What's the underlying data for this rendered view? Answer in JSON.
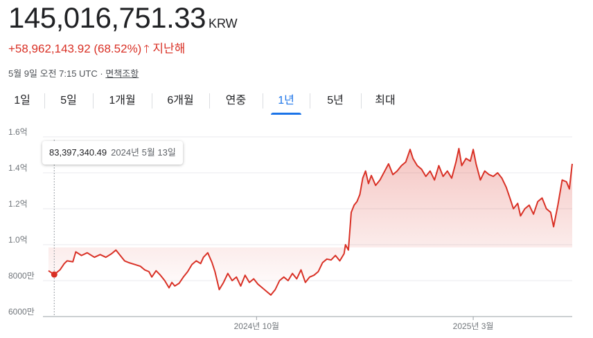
{
  "quote": {
    "price": "145,016,751.33",
    "currency": "KRW",
    "change": "+58,962,143.92 (68.52%)",
    "period_label": "지난해",
    "timestamp": "5월 9일 오전 7:15 UTC",
    "separator": "·",
    "disclaimer": "면책조항"
  },
  "colors": {
    "up": "#d93025",
    "accent": "#1a73e8"
  },
  "icons": {
    "change_arrow": "arrow-up-icon"
  },
  "tabs": [
    {
      "label": "1일"
    },
    {
      "label": "5일"
    },
    {
      "label": "1개월"
    },
    {
      "label": "6개월"
    },
    {
      "label": "연중"
    },
    {
      "label": "1년",
      "active": true
    },
    {
      "label": "5년"
    },
    {
      "label": "최대"
    }
  ],
  "tooltip": {
    "value": "83,397,340.49",
    "date": "2024년 5월 13일"
  },
  "chart_data": {
    "type": "area",
    "y_unit": "KRW",
    "ylim": [
      60000000,
      160000000
    ],
    "y_ticks": [
      {
        "value": 160000000,
        "label": "1.6억"
      },
      {
        "value": 140000000,
        "label": "1.4억"
      },
      {
        "value": 120000000,
        "label": "1.2억"
      },
      {
        "value": 100000000,
        "label": "1.0억"
      },
      {
        "value": 80000000,
        "label": "8000만"
      },
      {
        "value": 60000000,
        "label": "6000만"
      }
    ],
    "x_range": [
      "2024-05-09",
      "2025-05-09"
    ],
    "x_ticks": [
      {
        "date": "2024-10-01",
        "label": "2024년 10월"
      },
      {
        "date": "2025-03-01",
        "label": "2025년 3월"
      }
    ],
    "grid": true,
    "series": [
      {
        "color": "#d93025",
        "points": [
          [
            "2024-05-09",
            85.5
          ],
          [
            "2024-05-13",
            83.4
          ],
          [
            "2024-05-17",
            86.0
          ],
          [
            "2024-05-20",
            89.5
          ],
          [
            "2024-05-22",
            91.0
          ],
          [
            "2024-05-26",
            90.5
          ],
          [
            "2024-05-28",
            96.0
          ],
          [
            "2024-06-01",
            94.0
          ],
          [
            "2024-06-05",
            95.5
          ],
          [
            "2024-06-10",
            93.0
          ],
          [
            "2024-06-14",
            94.5
          ],
          [
            "2024-06-18",
            93.0
          ],
          [
            "2024-06-22",
            95.0
          ],
          [
            "2024-06-25",
            97.0
          ],
          [
            "2024-06-28",
            94.0
          ],
          [
            "2024-07-01",
            91.0
          ],
          [
            "2024-07-04",
            90.0
          ],
          [
            "2024-07-08",
            89.0
          ],
          [
            "2024-07-12",
            88.0
          ],
          [
            "2024-07-15",
            86.0
          ],
          [
            "2024-07-18",
            85.0
          ],
          [
            "2024-07-20",
            82.0
          ],
          [
            "2024-07-23",
            85.5
          ],
          [
            "2024-07-26",
            83.0
          ],
          [
            "2024-07-29",
            80.0
          ],
          [
            "2024-08-01",
            76.0
          ],
          [
            "2024-08-03",
            79.0
          ],
          [
            "2024-08-05",
            77.0
          ],
          [
            "2024-08-08",
            78.5
          ],
          [
            "2024-08-11",
            82.0
          ],
          [
            "2024-08-14",
            85.0
          ],
          [
            "2024-08-17",
            89.0
          ],
          [
            "2024-08-20",
            91.0
          ],
          [
            "2024-08-23",
            89.5
          ],
          [
            "2024-08-25",
            93.0
          ],
          [
            "2024-08-28",
            95.5
          ],
          [
            "2024-08-31",
            90.0
          ],
          [
            "2024-09-02",
            85.0
          ],
          [
            "2024-09-05",
            75.0
          ],
          [
            "2024-09-08",
            79.0
          ],
          [
            "2024-09-11",
            84.0
          ],
          [
            "2024-09-14",
            80.0
          ],
          [
            "2024-09-17",
            82.0
          ],
          [
            "2024-09-20",
            77.0
          ],
          [
            "2024-09-23",
            83.0
          ],
          [
            "2024-09-26",
            79.0
          ],
          [
            "2024-09-29",
            81.0
          ],
          [
            "2024-10-02",
            78.0
          ],
          [
            "2024-10-05",
            76.0
          ],
          [
            "2024-10-08",
            74.0
          ],
          [
            "2024-10-11",
            72.0
          ],
          [
            "2024-10-14",
            75.0
          ],
          [
            "2024-10-17",
            80.0
          ],
          [
            "2024-10-20",
            82.0
          ],
          [
            "2024-10-23",
            80.0
          ],
          [
            "2024-10-26",
            84.0
          ],
          [
            "2024-10-29",
            81.0
          ],
          [
            "2024-11-01",
            86.0
          ],
          [
            "2024-11-04",
            79.0
          ],
          [
            "2024-11-07",
            82.0
          ],
          [
            "2024-11-10",
            83.0
          ],
          [
            "2024-11-13",
            85.0
          ],
          [
            "2024-11-16",
            90.0
          ],
          [
            "2024-11-19",
            92.0
          ],
          [
            "2024-11-22",
            91.5
          ],
          [
            "2024-11-25",
            94.0
          ],
          [
            "2024-11-28",
            91.0
          ],
          [
            "2024-12-01",
            95.0
          ],
          [
            "2024-12-02",
            100.0
          ],
          [
            "2024-12-04",
            97.0
          ],
          [
            "2024-12-06",
            118.0
          ],
          [
            "2024-12-08",
            122.0
          ],
          [
            "2024-12-10",
            124.0
          ],
          [
            "2024-12-12",
            128.0
          ],
          [
            "2024-12-14",
            137.0
          ],
          [
            "2024-12-16",
            141.0
          ],
          [
            "2024-12-18",
            134.0
          ],
          [
            "2024-12-20",
            138.5
          ],
          [
            "2024-12-23",
            133.0
          ],
          [
            "2024-12-26",
            136.0
          ],
          [
            "2024-12-29",
            140.5
          ],
          [
            "2025-01-01",
            145.0
          ],
          [
            "2025-01-04",
            139.0
          ],
          [
            "2025-01-07",
            141.0
          ],
          [
            "2025-01-10",
            144.0
          ],
          [
            "2025-01-13",
            146.0
          ],
          [
            "2025-01-16",
            153.0
          ],
          [
            "2025-01-18",
            148.0
          ],
          [
            "2025-01-21",
            144.0
          ],
          [
            "2025-01-24",
            142.0
          ],
          [
            "2025-01-27",
            138.0
          ],
          [
            "2025-01-30",
            141.0
          ],
          [
            "2025-02-02",
            136.0
          ],
          [
            "2025-02-05",
            144.0
          ],
          [
            "2025-02-08",
            138.0
          ],
          [
            "2025-02-11",
            141.0
          ],
          [
            "2025-02-14",
            137.0
          ],
          [
            "2025-02-17",
            146.0
          ],
          [
            "2025-02-19",
            153.5
          ],
          [
            "2025-02-21",
            144.0
          ],
          [
            "2025-02-24",
            148.0
          ],
          [
            "2025-02-27",
            146.5
          ],
          [
            "2025-03-01",
            153.0
          ],
          [
            "2025-03-03",
            145.0
          ],
          [
            "2025-03-06",
            136.0
          ],
          [
            "2025-03-09",
            141.0
          ],
          [
            "2025-03-12",
            139.0
          ],
          [
            "2025-03-15",
            138.0
          ],
          [
            "2025-03-18",
            140.0
          ],
          [
            "2025-03-21",
            137.0
          ],
          [
            "2025-03-24",
            132.0
          ],
          [
            "2025-03-27",
            125.0
          ],
          [
            "2025-03-29",
            120.0
          ],
          [
            "2025-04-01",
            123.0
          ],
          [
            "2025-04-03",
            116.0
          ],
          [
            "2025-04-06",
            120.0
          ],
          [
            "2025-04-09",
            122.0
          ],
          [
            "2025-04-12",
            117.0
          ],
          [
            "2025-04-15",
            124.0
          ],
          [
            "2025-04-18",
            126.0
          ],
          [
            "2025-04-21",
            120.0
          ],
          [
            "2025-04-24",
            118.0
          ],
          [
            "2025-04-26",
            110.0
          ],
          [
            "2025-04-29",
            122.0
          ],
          [
            "2025-05-02",
            136.0
          ],
          [
            "2025-05-05",
            135.0
          ],
          [
            "2025-05-07",
            131.0
          ],
          [
            "2025-05-08",
            138.0
          ],
          [
            "2025-05-09",
            145.0
          ]
        ]
      }
    ],
    "highlight": {
      "date": "2024-05-13",
      "value": 83397340.49
    }
  }
}
